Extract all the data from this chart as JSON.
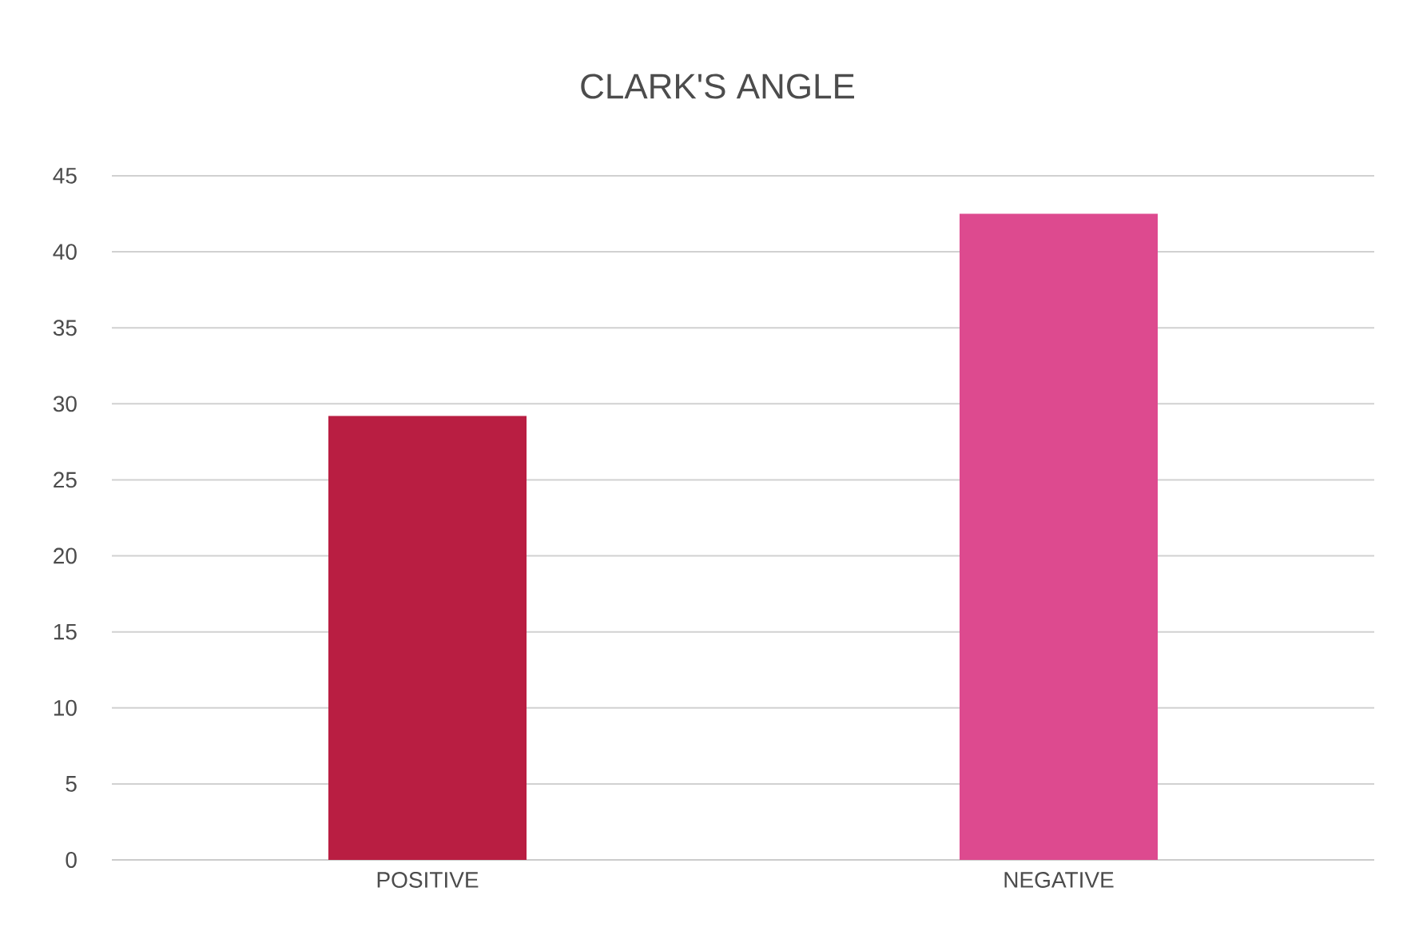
{
  "chart_data": {
    "type": "bar",
    "title": "CLARK'S ANGLE",
    "categories": [
      "POSITIVE",
      "NEGATIVE"
    ],
    "values": [
      29.2,
      42.5
    ],
    "colors": [
      "#b91e42",
      "#dd4a8f"
    ],
    "ylim": [
      0,
      45
    ],
    "yticks": [
      0,
      5,
      10,
      15,
      20,
      25,
      30,
      35,
      40,
      45
    ],
    "grid": "y"
  }
}
